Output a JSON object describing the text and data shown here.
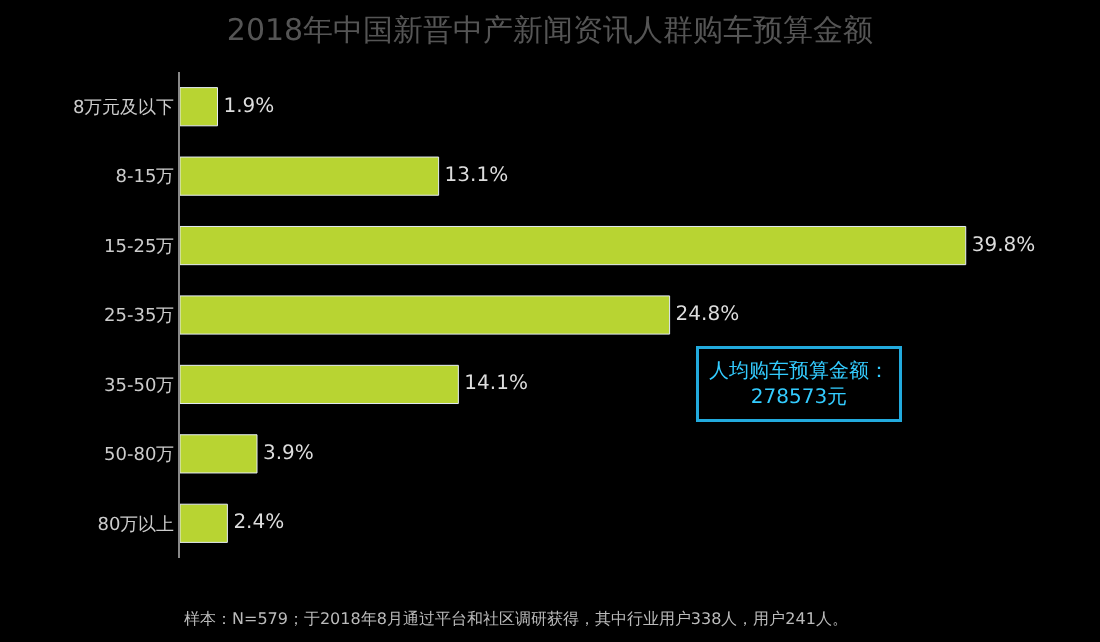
{
  "chart_data": {
    "type": "bar",
    "orientation": "horizontal",
    "title": "2018年中国新晋中产新闻资讯人群购车预算金额",
    "categories": [
      "8万元及以下",
      "8-15万",
      "15-25万",
      "25-35万",
      "35-50万",
      "50-80万",
      "80万以上"
    ],
    "values": [
      1.9,
      13.1,
      39.8,
      24.8,
      14.1,
      3.9,
      2.4
    ],
    "value_labels": [
      "1.9%",
      "13.1%",
      "39.8%",
      "24.8%",
      "14.1%",
      "3.9%",
      "2.4%"
    ],
    "color": "#b8d432",
    "annotations": [
      "人均购车预算金额：\n278573元",
      "样本：N=579；于2018年8月通过平台和社区调研获得，其中行业用户338人，用户241人。"
    ],
    "legend": false,
    "grid": false
  }
}
